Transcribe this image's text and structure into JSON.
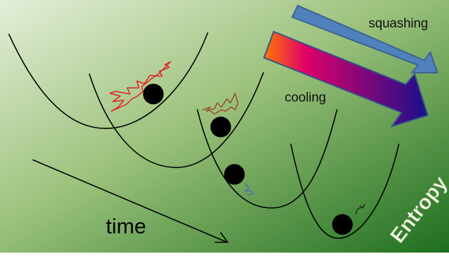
{
  "labels": {
    "squashing": "squashing",
    "cooling": "cooling",
    "time": "time",
    "entropy": "Entropy"
  },
  "colors": {
    "background_light": "#e4eed9",
    "background_dark": "#1e6e1e",
    "squashing_arrow_fill": "#4f81bd",
    "squashing_arrow_stroke": "#3c6491",
    "cooling_arrow_start": "#ff7a00",
    "cooling_arrow_mid": "#e0006a",
    "cooling_arrow_end": "#1a0f8a",
    "curve": "#000000",
    "ball": "#000000",
    "squiggle_hot": "#e02020",
    "squiggle_warm": "#9a4a2a",
    "squiggle_cool": "#4a6fb0",
    "squiggle_cold": "#2a2a2a",
    "entropy_text": "#ffffff"
  }
}
